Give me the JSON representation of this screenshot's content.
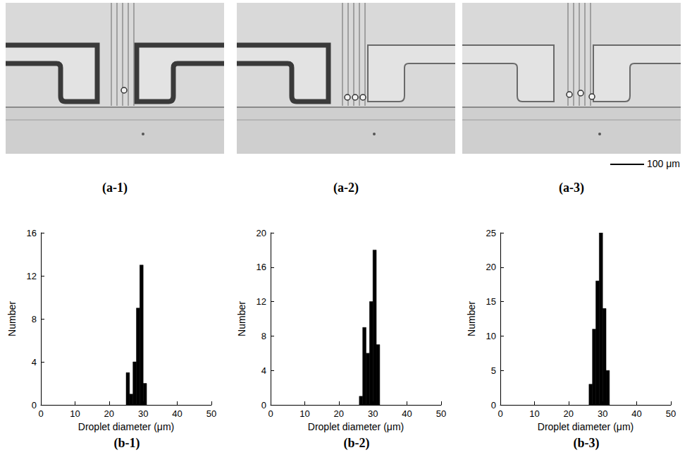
{
  "images": [
    {
      "label": "(a-1)"
    },
    {
      "label": "(a-2)"
    },
    {
      "label": "(a-3)"
    }
  ],
  "scale_bar": "100 μm",
  "chart_data": [
    {
      "type": "histogram",
      "panel": "(b-1)",
      "x_label": "Droplet diameter (μm)",
      "y_label": "Number",
      "bins": [
        25,
        26,
        27,
        28,
        29,
        30,
        31
      ],
      "counts": [
        3,
        1,
        4,
        9,
        13,
        2
      ],
      "color": "#000000",
      "xlim": [
        0,
        50
      ],
      "xticks": [
        0,
        10,
        20,
        30,
        40,
        50
      ],
      "ylim": [
        0,
        16
      ],
      "yticks": [
        0,
        4,
        8,
        12,
        16
      ],
      "grid": false
    },
    {
      "type": "histogram",
      "panel": "(b-2)",
      "x_label": "Droplet diameter (μm)",
      "y_label": "Number",
      "bins": [
        26,
        27,
        28,
        29,
        30,
        31,
        32
      ],
      "counts": [
        1,
        9,
        6,
        12,
        18,
        7
      ],
      "color": "#000000",
      "xlim": [
        0,
        50
      ],
      "xticks": [
        0,
        10,
        20,
        30,
        40,
        50
      ],
      "ylim": [
        0,
        20
      ],
      "yticks": [
        0,
        4,
        8,
        12,
        16,
        20
      ],
      "grid": false
    },
    {
      "type": "histogram",
      "panel": "(b-3)",
      "x_label": "Droplet diameter (μm)",
      "y_label": "Number",
      "bins": [
        26,
        27,
        28,
        29,
        30,
        31,
        32
      ],
      "counts": [
        3,
        11,
        18,
        25,
        14,
        5
      ],
      "color": "#000000",
      "xlim": [
        0,
        50
      ],
      "xticks": [
        0,
        10,
        20,
        30,
        40,
        50
      ],
      "ylim": [
        0,
        25
      ],
      "yticks": [
        0,
        5,
        10,
        15,
        20,
        25
      ],
      "grid": false
    }
  ]
}
